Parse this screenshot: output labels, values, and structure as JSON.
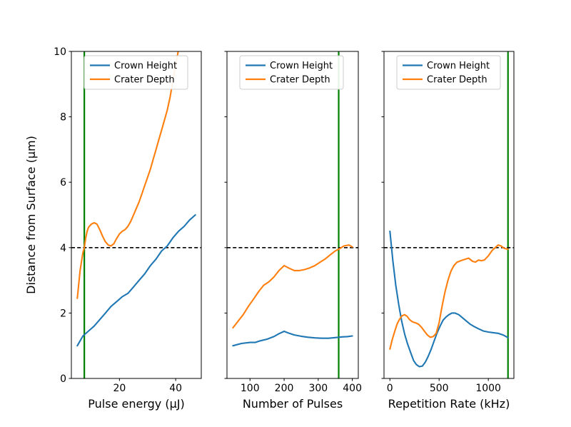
{
  "figure": {
    "background": "#ffffff",
    "ylabel": "Distance from Surface (μm)",
    "ylim": [
      0,
      10
    ],
    "yticks": [
      0,
      2,
      4,
      6,
      8,
      10
    ],
    "hline_y": 4,
    "colors": {
      "crown_height": "#1f77b4",
      "crater_depth": "#ff7f0e",
      "threshold_vline": "#008000",
      "dashed_hline": "#000000"
    },
    "legend_labels": [
      "Crown Height",
      "Crater Depth"
    ]
  },
  "chart_data": [
    {
      "type": "line",
      "title": "",
      "xlabel": "Pulse energy (μJ)",
      "ylabel": "Distance from Surface (μm)",
      "xticks": [
        20,
        40
      ],
      "xlim": [
        2.9,
        49.1
      ],
      "ylim": [
        0,
        10
      ],
      "grid": false,
      "legend_position": "upper left",
      "vline_x": 7.5,
      "hline_y": 4,
      "series": [
        {
          "name": "Crown Height",
          "color": "#1f77b4",
          "x": [
            5,
            7,
            9,
            11,
            13,
            15,
            17,
            19,
            21,
            23,
            25,
            27,
            29,
            31,
            33,
            35,
            37,
            39,
            41,
            43,
            45,
            47
          ],
          "y": [
            1.0,
            1.3,
            1.45,
            1.6,
            1.8,
            2.0,
            2.2,
            2.35,
            2.5,
            2.6,
            2.8,
            3.0,
            3.2,
            3.45,
            3.65,
            3.9,
            4.05,
            4.3,
            4.5,
            4.65,
            4.85,
            5.0
          ]
        },
        {
          "name": "Crater Depth",
          "color": "#ff7f0e",
          "x": [
            5,
            6,
            7,
            7.5,
            8,
            8.5,
            9,
            10,
            11,
            12,
            13,
            14,
            15,
            16,
            17,
            18,
            19,
            20,
            21,
            22,
            23,
            24,
            25,
            26,
            27,
            28,
            29,
            30,
            31,
            32,
            33,
            34,
            35,
            36,
            37,
            38,
            39,
            40,
            41,
            41.5
          ],
          "y": [
            2.45,
            3.3,
            3.85,
            4.0,
            4.3,
            4.5,
            4.62,
            4.72,
            4.76,
            4.72,
            4.55,
            4.35,
            4.18,
            4.08,
            4.05,
            4.12,
            4.28,
            4.42,
            4.5,
            4.55,
            4.65,
            4.8,
            5.0,
            5.2,
            5.4,
            5.65,
            5.9,
            6.15,
            6.4,
            6.7,
            7.0,
            7.3,
            7.6,
            7.9,
            8.2,
            8.6,
            9.1,
            9.6,
            10.05,
            10.3
          ]
        }
      ]
    },
    {
      "type": "line",
      "title": "",
      "xlabel": "Number of Pulses",
      "ylabel": "Distance from Surface (μm)",
      "xticks": [
        100,
        200,
        300,
        400
      ],
      "xlim": [
        32.5,
        417.5
      ],
      "ylim": [
        0,
        10
      ],
      "grid": false,
      "legend_position": "upper left",
      "vline_x": 360,
      "hline_y": 4,
      "series": [
        {
          "name": "Crown Height",
          "color": "#1f77b4",
          "x": [
            50,
            75,
            100,
            115,
            130,
            150,
            170,
            185,
            200,
            215,
            230,
            250,
            270,
            290,
            310,
            330,
            350,
            370,
            385,
            400
          ],
          "y": [
            1.0,
            1.07,
            1.1,
            1.1,
            1.15,
            1.2,
            1.28,
            1.37,
            1.44,
            1.38,
            1.33,
            1.29,
            1.26,
            1.24,
            1.23,
            1.23,
            1.25,
            1.27,
            1.28,
            1.3
          ]
        },
        {
          "name": "Crater Depth",
          "color": "#ff7f0e",
          "x": [
            50,
            65,
            80,
            95,
            110,
            125,
            140,
            155,
            170,
            185,
            200,
            215,
            230,
            245,
            260,
            275,
            290,
            305,
            320,
            335,
            350,
            360,
            375,
            390,
            400
          ],
          "y": [
            1.55,
            1.75,
            1.95,
            2.2,
            2.42,
            2.65,
            2.85,
            2.95,
            3.1,
            3.3,
            3.45,
            3.37,
            3.3,
            3.3,
            3.33,
            3.38,
            3.45,
            3.55,
            3.65,
            3.78,
            3.9,
            3.95,
            4.05,
            4.08,
            4.02
          ]
        }
      ]
    },
    {
      "type": "line",
      "title": "",
      "xlabel": "Repetition Rate (kHz)",
      "ylabel": "Distance from Surface (μm)",
      "xticks": [
        0,
        500,
        1000
      ],
      "xlim": [
        -60,
        1260
      ],
      "ylim": [
        0,
        10
      ],
      "grid": false,
      "legend_position": "upper left",
      "vline_x": 1200,
      "hline_y": 4,
      "series": [
        {
          "name": "Crown Height",
          "color": "#1f77b4",
          "x": [
            0,
            30,
            60,
            90,
            120,
            150,
            180,
            210,
            240,
            270,
            300,
            330,
            360,
            390,
            420,
            450,
            480,
            510,
            540,
            570,
            600,
            630,
            660,
            700,
            740,
            780,
            820,
            860,
            900,
            950,
            1000,
            1050,
            1100,
            1150,
            1200
          ],
          "y": [
            4.5,
            3.6,
            2.85,
            2.25,
            1.75,
            1.35,
            1.05,
            0.8,
            0.55,
            0.42,
            0.36,
            0.38,
            0.5,
            0.68,
            0.9,
            1.15,
            1.4,
            1.6,
            1.78,
            1.88,
            1.95,
            2.0,
            2.0,
            1.95,
            1.85,
            1.75,
            1.65,
            1.58,
            1.52,
            1.45,
            1.42,
            1.4,
            1.38,
            1.33,
            1.25
          ]
        },
        {
          "name": "Crater Depth",
          "color": "#ff7f0e",
          "x": [
            0,
            25,
            50,
            75,
            100,
            125,
            150,
            175,
            200,
            230,
            260,
            290,
            320,
            350,
            380,
            410,
            440,
            470,
            500,
            530,
            560,
            590,
            620,
            650,
            680,
            720,
            760,
            800,
            840,
            870,
            900,
            930,
            960,
            1000,
            1040,
            1070,
            1100,
            1130,
            1160,
            1200
          ],
          "y": [
            0.9,
            1.2,
            1.45,
            1.68,
            1.82,
            1.92,
            1.95,
            1.9,
            1.8,
            1.73,
            1.7,
            1.66,
            1.57,
            1.45,
            1.33,
            1.26,
            1.28,
            1.38,
            1.7,
            2.2,
            2.65,
            3.0,
            3.28,
            3.45,
            3.55,
            3.6,
            3.64,
            3.68,
            3.58,
            3.56,
            3.62,
            3.6,
            3.62,
            3.75,
            3.92,
            4.0,
            4.08,
            4.05,
            3.98,
            3.95
          ]
        }
      ]
    }
  ]
}
